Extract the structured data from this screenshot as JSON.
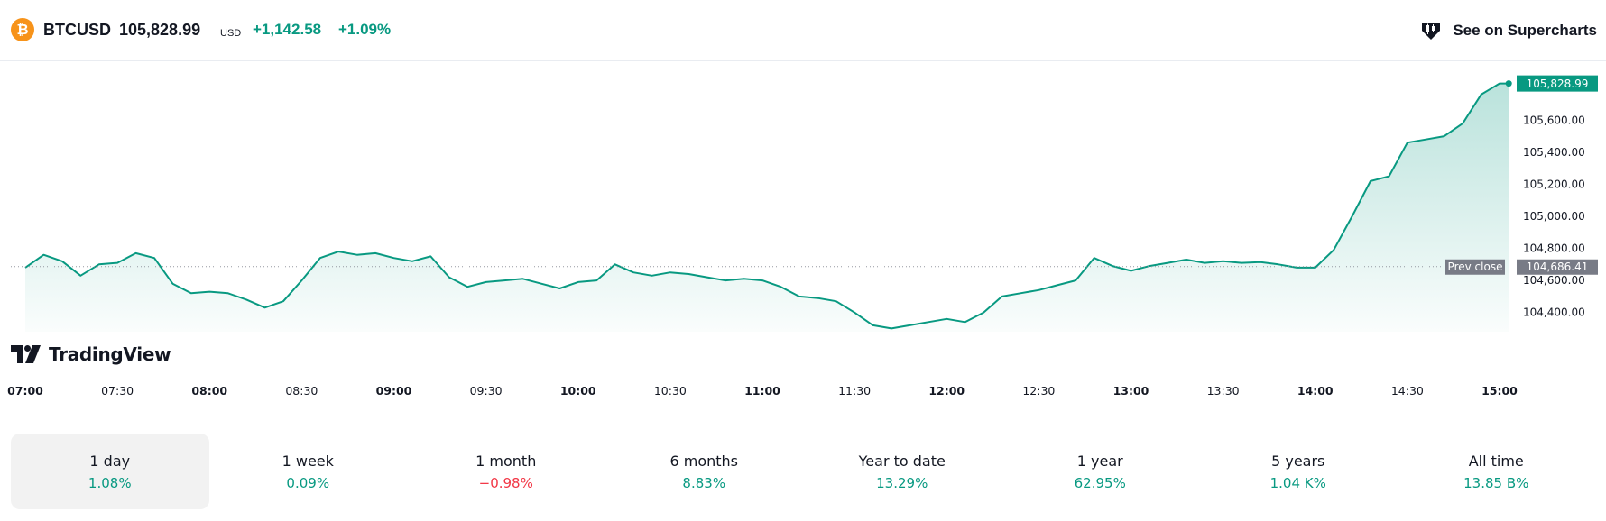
{
  "header": {
    "coin_glyph": "₿",
    "symbol": "BTCUSD",
    "price": "105,828.99",
    "currency": "USD",
    "change": "+1,142.58",
    "change_percent": "+1.09%",
    "supercharts_label": "See on Supercharts",
    "supercharts_icon": "candlestick-icon"
  },
  "logo": {
    "text": "TradingView"
  },
  "colors": {
    "up": "#089981",
    "down": "#f23645",
    "line": "#089981"
  },
  "chart_data": {
    "type": "area",
    "x_axis": {
      "labels": [
        "07:00",
        "07:30",
        "08:00",
        "08:30",
        "09:00",
        "09:30",
        "10:00",
        "10:30",
        "11:00",
        "11:30",
        "12:00",
        "12:30",
        "13:00",
        "13:30",
        "14:00",
        "14:30",
        "15:00"
      ],
      "bold": [
        true,
        false,
        true,
        false,
        true,
        false,
        true,
        false,
        true,
        false,
        true,
        false,
        true,
        false,
        true,
        false,
        true
      ],
      "range_hours": [
        7,
        15.0
      ]
    },
    "y_axis": {
      "ticks": [
        104400,
        104600,
        104800,
        105000,
        105200,
        105400,
        105600
      ],
      "tick_labels": [
        "104,400.00",
        "104,600.00",
        "104,800.00",
        "105,000.00",
        "105,200.00",
        "105,400.00",
        "105,600.00"
      ],
      "range": [
        104280,
        105900
      ]
    },
    "prev_close": {
      "label": "Prev close",
      "value": 104686.41,
      "value_label": "104,686.41"
    },
    "last_price": {
      "value": 105828.99,
      "value_label": "105,828.99"
    },
    "series": [
      {
        "time": [
          7.0,
          7.1,
          7.2,
          7.3,
          7.4,
          7.5,
          7.6,
          7.7,
          7.8,
          7.9,
          8.0,
          8.1,
          8.2,
          8.3,
          8.4,
          8.5,
          8.6,
          8.7,
          8.8,
          8.9,
          9.0,
          9.1,
          9.2,
          9.3,
          9.4,
          9.5,
          9.6,
          9.7,
          9.8,
          9.9,
          10.0,
          10.1,
          10.2,
          10.3,
          10.4,
          10.5,
          10.6,
          10.7,
          10.8,
          10.9,
          11.0,
          11.1,
          11.2,
          11.3,
          11.4,
          11.5,
          11.6,
          11.7,
          11.8,
          11.9,
          12.0,
          12.1,
          12.2,
          12.3,
          12.4,
          12.5,
          12.6,
          12.7,
          12.8,
          12.9,
          13.0,
          13.1,
          13.2,
          13.3,
          13.4,
          13.5,
          13.6,
          13.7,
          13.8,
          13.9,
          14.0,
          14.1,
          14.2,
          14.3,
          14.4,
          14.5,
          14.6,
          14.7,
          14.8,
          14.9,
          15.0,
          15.05
        ],
        "price": [
          104680,
          104760,
          104720,
          104630,
          104700,
          104710,
          104770,
          104740,
          104580,
          104520,
          104530,
          104520,
          104480,
          104430,
          104470,
          104600,
          104740,
          104780,
          104760,
          104770,
          104740,
          104720,
          104750,
          104620,
          104560,
          104590,
          104600,
          104610,
          104580,
          104550,
          104590,
          104600,
          104700,
          104650,
          104630,
          104650,
          104640,
          104620,
          104600,
          104610,
          104600,
          104560,
          104500,
          104490,
          104470,
          104400,
          104320,
          104300,
          104320,
          104340,
          104360,
          104340,
          104400,
          104500,
          104520,
          104540,
          104570,
          104600,
          104740,
          104690,
          104660,
          104690,
          104710,
          104730,
          104710,
          104720,
          104710,
          104715,
          104700,
          104680,
          104680,
          104790,
          105000,
          105220,
          105250,
          105460,
          105480,
          105500,
          105580,
          105760,
          105828.99,
          105828.99
        ]
      }
    ]
  },
  "periods": [
    {
      "label": "1 day",
      "value": "1.08%",
      "dir": "up",
      "active": true
    },
    {
      "label": "1 week",
      "value": "0.09%",
      "dir": "up",
      "active": false
    },
    {
      "label": "1 month",
      "value": "−0.98%",
      "dir": "down",
      "active": false
    },
    {
      "label": "6 months",
      "value": "8.83%",
      "dir": "up",
      "active": false
    },
    {
      "label": "Year to date",
      "value": "13.29%",
      "dir": "up",
      "active": false
    },
    {
      "label": "1 year",
      "value": "62.95%",
      "dir": "up",
      "active": false
    },
    {
      "label": "5 years",
      "value": "1.04 K%",
      "dir": "up",
      "active": false
    },
    {
      "label": "All time",
      "value": "13.85 B%",
      "dir": "up",
      "active": false
    }
  ]
}
